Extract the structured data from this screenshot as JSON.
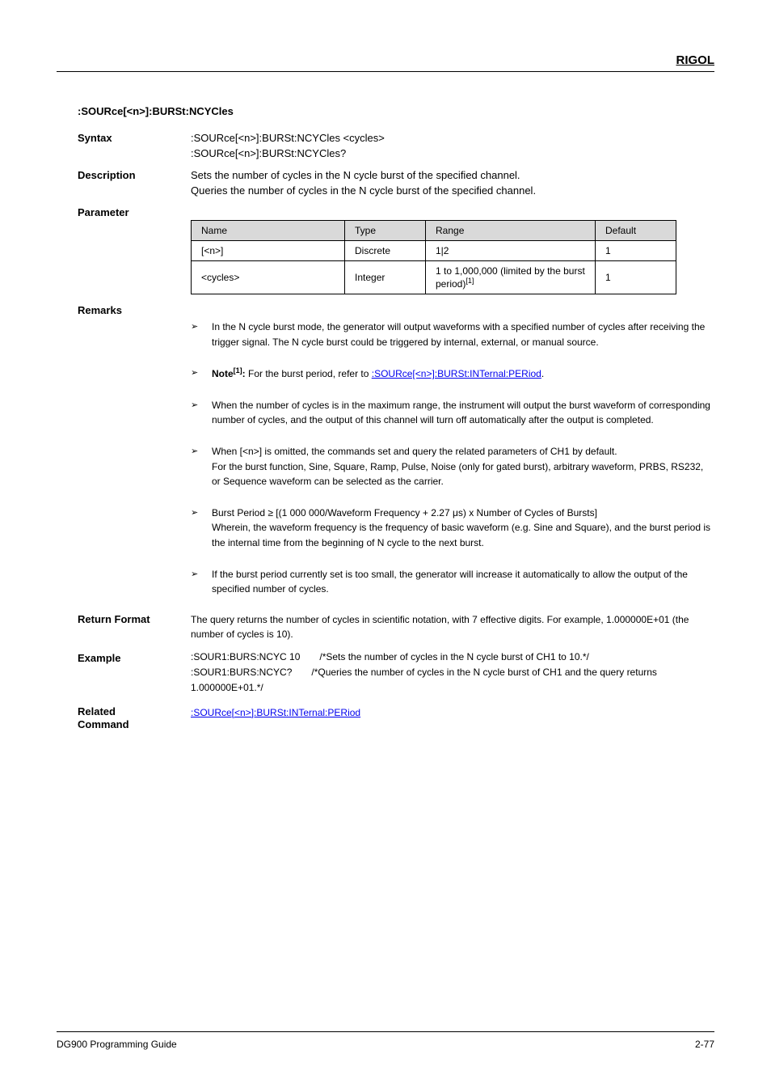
{
  "brand": "RIGOL",
  "command_name": ":SOURce[<n>]:BURSt:NCYCles",
  "sections": {
    "syntax_label": "Syntax",
    "syntax_line1": ":SOURce[<n>]:BURSt:NCYCles <cycles>",
    "syntax_line2": ":SOURce[<n>]:BURSt:NCYCles?",
    "description_label": "Description",
    "description_line1": "Sets the number of cycles in the N cycle burst of the specified channel.",
    "description_line2": "Queries the number of cycles in the N cycle burst of the specified channel.",
    "parameter_label": "Parameter",
    "remarks_label": "Remarks",
    "return_format_label": "Return Format",
    "return_format_text": "The query returns the number of cycles in scientific notation, with 7 effective digits. For example, 1.000000E+01 (the number of cycles is 10).",
    "example_label": "Example",
    "related_label": "Related",
    "related_label2": "Command"
  },
  "param_table": {
    "headers": [
      "Name",
      "Type",
      "Range",
      "Default"
    ],
    "rows": [
      [
        "[<n>]",
        "Discrete",
        "1|2",
        "1"
      ],
      [
        "<cycles>",
        "Integer",
        "1 to 1,000,000 (limited by the burst period)",
        "1"
      ]
    ],
    "note_marker": "[1]"
  },
  "remarks": [
    {
      "text": "In the N cycle burst mode, the generator will output waveforms with a specified number of cycles after receiving the trigger signal. The N cycle burst could be triggered by internal, external, or manual source."
    },
    {
      "text": "<span class=\"note-head\">Note<span class=\"sup\">[1]</span>:</span> For the burst period, refer to <a class=\"link\" href=\"#\" data-name=\"link-burst-internal-period\" data-interactable=\"true\">:SOURce[&lt;n&gt;]:BURSt:INTernal:PERiod</a>."
    },
    {
      "text": "When the number of cycles is in the maximum range, the instrument will output the burst waveform of corresponding number of cycles, and the output of this channel will turn off automatically after the output is completed."
    },
    {
      "text": "When [&lt;n&gt;] is omitted, the commands set and query the related parameters of CH1 by default.<br>For the burst function, Sine, Square, Ramp, Pulse, Noise (only for gated burst), arbitrary waveform, PRBS, RS232, or Sequence waveform can be selected as the carrier."
    },
    {
      "text": "Burst Period ≥ [(1 000 000/Waveform Frequency + 2.27 μs) x Number of Cycles of Bursts]<br>Wherein, the waveform frequency is the frequency of basic waveform (e.g. Sine and Square), and the burst period is the internal time from the beginning of N cycle to the next burst."
    },
    {
      "text": "If the burst period currently set is too small, the generator will increase it automatically to allow the output of the specified number of cycles."
    }
  ],
  "example": {
    "line1": ":SOUR1:BURS:NCYC 10",
    "comment1": "/*Sets the number of cycles in the N cycle burst of CH1 to 10.*/",
    "line2": ":SOUR1:BURS:NCYC?",
    "comment2": "/*Queries the number of cycles in the N cycle burst of CH1 and the query returns 1.000000E+01.*/"
  },
  "related_link": ":SOURce[<n>]:BURSt:INTernal:PERiod",
  "footer": {
    "left": "DG900 Programming Guide",
    "right": "2-77"
  }
}
